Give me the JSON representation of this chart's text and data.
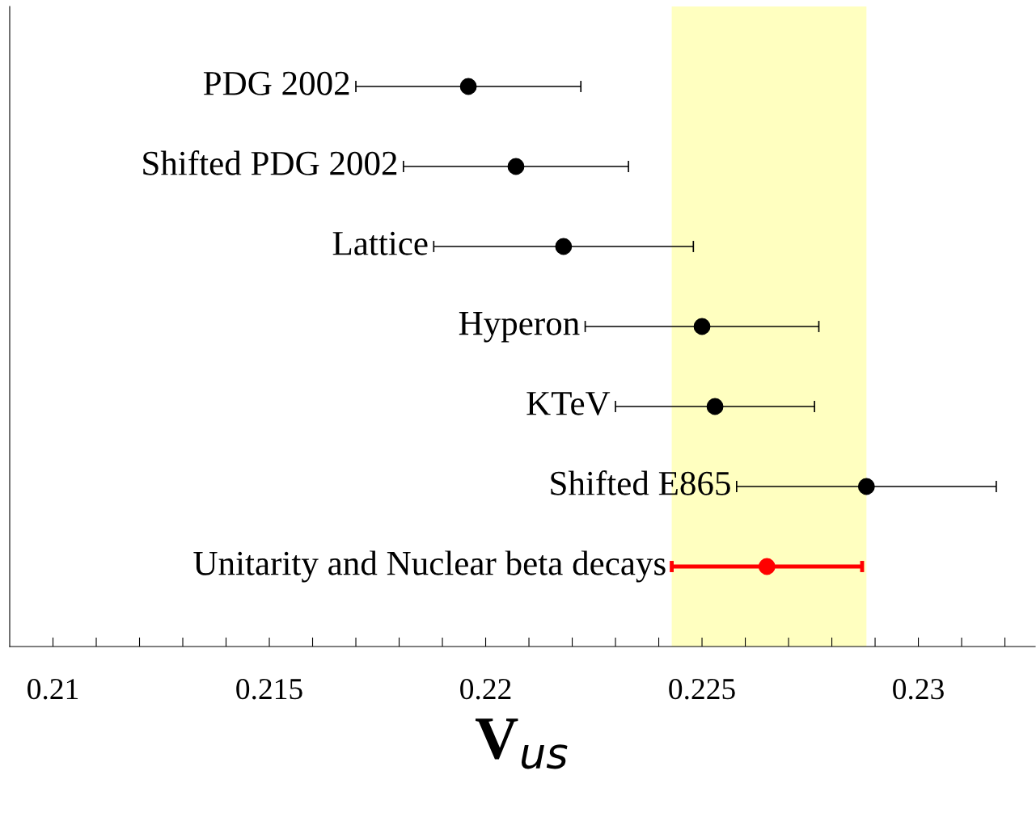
{
  "chart_data": {
    "type": "scatter",
    "orientation": "horizontal",
    "categories": [
      "PDG 2002",
      "Shifted PDG 2002",
      "Lattice",
      "Hyperon",
      "KTeV",
      "Shifted E865",
      "Unitarity and Nuclear beta decays"
    ],
    "series": [
      {
        "color": "#000000",
        "values": [
          0.2196,
          0.2207,
          0.2218,
          0.225,
          0.2253,
          0.2288,
          null
        ],
        "errors": [
          [
            0.217,
            0.2222
          ],
          [
            0.2181,
            0.2233
          ],
          [
            0.2188,
            0.2248
          ],
          [
            0.2223,
            0.2277
          ],
          [
            0.223,
            0.2276
          ],
          [
            0.2258,
            0.2318
          ],
          null
        ]
      },
      {
        "color": "#ff0000",
        "values": [
          null,
          null,
          null,
          null,
          null,
          null,
          0.2265
        ],
        "errors": [
          null,
          null,
          null,
          null,
          null,
          null,
          [
            0.2243,
            0.2287
          ]
        ]
      }
    ],
    "bands": [
      {
        "axis": "x",
        "from": 0.2243,
        "to": 0.2288,
        "color": "#ffffc0"
      }
    ],
    "xlabel": "V$_{us}$",
    "xlim": [
      0.209,
      0.2327
    ],
    "xticks": [
      0.21,
      {
        "value": 0.211,
        "label": null
      },
      {
        "value": 0.212,
        "label": null
      },
      {
        "value": 0.213,
        "label": null
      },
      {
        "value": 0.214,
        "label": null
      },
      0.215,
      {
        "value": 0.216,
        "label": null
      },
      {
        "value": 0.217,
        "label": null
      },
      {
        "value": 0.218,
        "label": null
      },
      {
        "value": 0.219,
        "label": null
      },
      0.22,
      {
        "value": 0.221,
        "label": null
      },
      {
        "value": 0.222,
        "label": null
      },
      {
        "value": 0.223,
        "label": null
      },
      {
        "value": 0.224,
        "label": null
      },
      0.225,
      {
        "value": 0.226,
        "label": null
      },
      {
        "value": 0.227,
        "label": null
      },
      {
        "value": 0.228,
        "label": null
      },
      {
        "value": 0.229,
        "label": null
      },
      0.23,
      {
        "value": 0.231,
        "label": null
      },
      {
        "value": 0.232,
        "label": null
      }
    ],
    "marker": "circle",
    "grid": false,
    "legend": false,
    "tick_labels": "x"
  }
}
